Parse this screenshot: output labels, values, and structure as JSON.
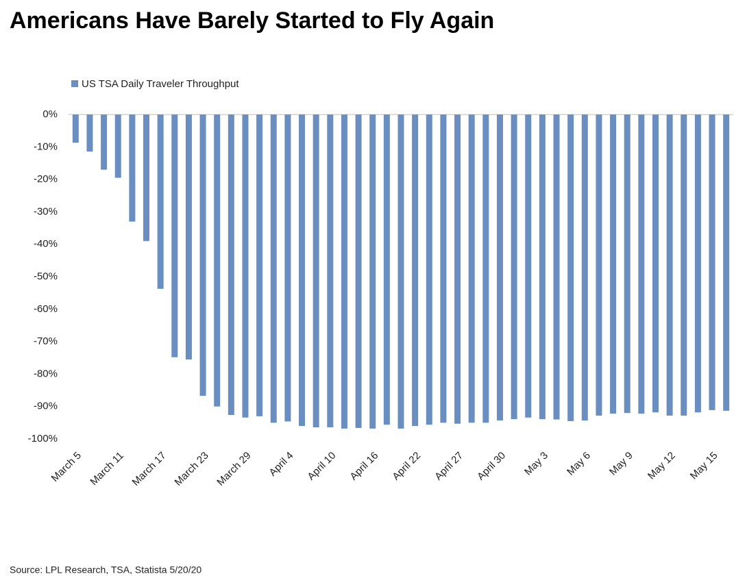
{
  "chart_data": {
    "type": "bar",
    "title": "Americans Have Barely Started to Fly Again",
    "source": "Source: LPL Research, TSA, Statista 5/20/20",
    "categories": [
      "March 5",
      null,
      null,
      "March 11",
      null,
      null,
      "March 17",
      null,
      null,
      "March 23",
      null,
      null,
      "March 29",
      null,
      null,
      "April 4",
      null,
      null,
      "April 10",
      null,
      null,
      "April 16",
      null,
      null,
      "April 22",
      null,
      null,
      "April 27",
      null,
      null,
      "April 30",
      null,
      null,
      "May 3",
      null,
      null,
      "May 6",
      null,
      null,
      "May 9",
      null,
      null,
      "May 12",
      null,
      null,
      "May 15",
      null
    ],
    "series": [
      {
        "name": "US TSA Daily Traveler Throughput",
        "color": "#6a8ebf",
        "values": [
          -8.7,
          -11.4,
          -17,
          -19.5,
          -33,
          -39,
          -53.7,
          -74.8,
          -75.5,
          -86.7,
          -90,
          -92.6,
          -93.4,
          -93,
          -95,
          -94.6,
          -96,
          -96.4,
          -96.4,
          -96.8,
          -96.6,
          -96.8,
          -95.6,
          -96.8,
          -96,
          -95.6,
          -95,
          -95.3,
          -95,
          -95,
          -94.3,
          -93.9,
          -93.4,
          -93.9,
          -94,
          -94.5,
          -94.3,
          -92.8,
          -92.2,
          -92,
          -92.2,
          -91.8,
          -92.8,
          -92.8,
          -91.8,
          -91.1,
          -91.3
        ]
      }
    ],
    "ylim": [
      -100,
      0
    ],
    "yticks": [
      {
        "value": 0,
        "label": "0%"
      },
      {
        "value": -10,
        "label": "-10%"
      },
      {
        "value": -20,
        "label": "-20%"
      },
      {
        "value": -30,
        "label": "-30%"
      },
      {
        "value": -40,
        "label": "-40%"
      },
      {
        "value": -50,
        "label": "-50%"
      },
      {
        "value": -60,
        "label": "-60%"
      },
      {
        "value": -70,
        "label": "-70%"
      },
      {
        "value": -80,
        "label": "-80%"
      },
      {
        "value": -90,
        "label": "-90%"
      },
      {
        "value": -100,
        "label": "-100%"
      }
    ],
    "grid": false
  }
}
